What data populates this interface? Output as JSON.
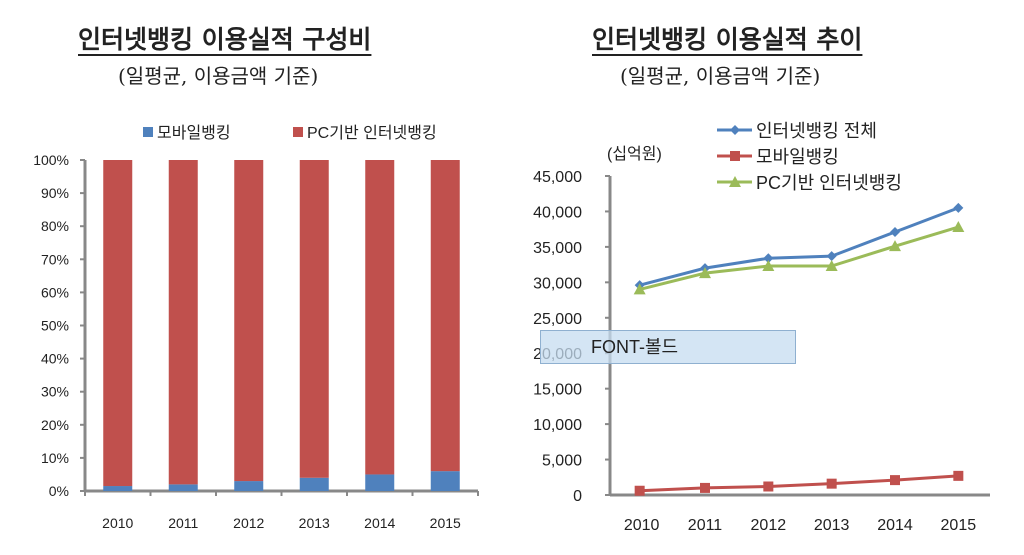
{
  "chart_data": [
    {
      "type": "bar",
      "stacked": true,
      "title": "인터넷뱅킹 이용실적 구성비",
      "subtitle": "(일평균, 이용금액 기준)",
      "categories": [
        "2010",
        "2011",
        "2012",
        "2013",
        "2014",
        "2015"
      ],
      "series": [
        {
          "name": "모바일뱅킹",
          "color": "#4f81bd",
          "values": [
            1.5,
            2,
            3,
            4,
            5,
            6
          ]
        },
        {
          "name": "PC기반 인터넷뱅킹",
          "color": "#c0504d",
          "values": [
            98.5,
            98,
            97,
            96,
            95,
            94
          ]
        }
      ],
      "ylim": [
        0,
        100
      ],
      "yticks": [
        "0%",
        "10%",
        "20%",
        "30%",
        "40%",
        "50%",
        "60%",
        "70%",
        "80%",
        "90%",
        "100%"
      ],
      "legend": "top",
      "grid": false
    },
    {
      "type": "line",
      "title": "인터넷뱅킹 이용실적 추이",
      "subtitle": "(일평균, 이용금액 기준)",
      "ylabel": "(십억원)",
      "categories": [
        "2010",
        "2011",
        "2012",
        "2013",
        "2014",
        "2015"
      ],
      "series": [
        {
          "name": "인터넷뱅킹 전체",
          "color": "#4f81bd",
          "marker": "diamond",
          "values": [
            29600,
            32000,
            33400,
            33700,
            37100,
            40500
          ]
        },
        {
          "name": "모바일뱅킹",
          "color": "#c0504d",
          "marker": "square",
          "values": [
            600,
            1000,
            1200,
            1600,
            2100,
            2700
          ]
        },
        {
          "name": "PC기반 인터넷뱅킹",
          "color": "#9bbb59",
          "marker": "triangle",
          "values": [
            29000,
            31300,
            32300,
            32300,
            35100,
            37800
          ]
        }
      ],
      "ylim": [
        0,
        45000
      ],
      "yticks": [
        "0",
        "5,000",
        "10,000",
        "15,000",
        "20,000",
        "25,000",
        "30,000",
        "35,000",
        "40,000",
        "45,000"
      ],
      "legend": "top-right",
      "grid": false
    }
  ],
  "tooltip": {
    "text": "FONT-볼드"
  }
}
